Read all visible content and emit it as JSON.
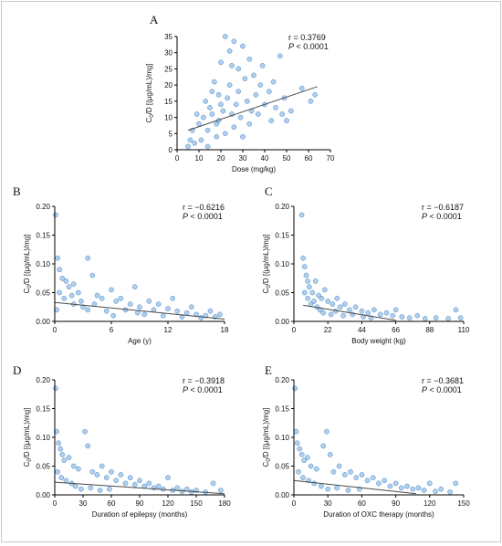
{
  "chart_data": [
    {
      "panel": "A",
      "type": "scatter",
      "xlabel": "Dose (mg/kg)",
      "ylabel": "C0/D [(μg/mL)/mg]",
      "xticks": [
        0,
        10,
        20,
        30,
        40,
        50,
        60,
        70
      ],
      "xlim": [
        0,
        70
      ],
      "yticks": [
        0,
        5,
        10,
        15,
        20,
        25,
        30,
        35
      ],
      "ylim": [
        0,
        35
      ],
      "stats": {
        "r": "r =  0.3769",
        "p": "P < 0.0001"
      },
      "trend": {
        "x": [
          5,
          64
        ],
        "y": [
          6.0,
          19.5
        ]
      },
      "points": [
        [
          22,
          35
        ],
        [
          26,
          33.5
        ],
        [
          30,
          32
        ],
        [
          47,
          29
        ],
        [
          24,
          30.5
        ],
        [
          33,
          28
        ],
        [
          39,
          26
        ],
        [
          63,
          17
        ],
        [
          57,
          19
        ],
        [
          61,
          15
        ],
        [
          28,
          25
        ],
        [
          44,
          21
        ],
        [
          17,
          21
        ],
        [
          20,
          27
        ],
        [
          25,
          26
        ],
        [
          35,
          23
        ],
        [
          42,
          18
        ],
        [
          49,
          16
        ],
        [
          52,
          12
        ],
        [
          38,
          20
        ],
        [
          31,
          22
        ],
        [
          19,
          17
        ],
        [
          15,
          13
        ],
        [
          12,
          10
        ],
        [
          10,
          8
        ],
        [
          9,
          11
        ],
        [
          7,
          6
        ],
        [
          6,
          3
        ],
        [
          5,
          1
        ],
        [
          8,
          2
        ],
        [
          11,
          3
        ],
        [
          14,
          1
        ],
        [
          13,
          15
        ],
        [
          16,
          18
        ],
        [
          18,
          8
        ],
        [
          21,
          12
        ],
        [
          23,
          16
        ],
        [
          27,
          14
        ],
        [
          29,
          10
        ],
        [
          32,
          15
        ],
        [
          34,
          12
        ],
        [
          36,
          17
        ],
        [
          40,
          14
        ],
        [
          45,
          13
        ],
        [
          48,
          11
        ],
        [
          50,
          9
        ],
        [
          22,
          5
        ],
        [
          26,
          7
        ],
        [
          30,
          4
        ],
        [
          18,
          4
        ],
        [
          14,
          6
        ],
        [
          24,
          20
        ],
        [
          20,
          14
        ],
        [
          28,
          18
        ],
        [
          33,
          8
        ],
        [
          37,
          11
        ],
        [
          43,
          9
        ],
        [
          25,
          11
        ],
        [
          19,
          9
        ],
        [
          16,
          11
        ]
      ]
    },
    {
      "panel": "B",
      "type": "scatter",
      "xlabel": "Age (y)",
      "ylabel": "C0/D [(μg/mL)/mg]",
      "xticks": [
        0,
        6,
        12,
        18
      ],
      "xlim": [
        0,
        18
      ],
      "yticks": [
        0.0,
        0.05,
        0.1,
        0.15,
        0.2
      ],
      "ylim": [
        0,
        0.2
      ],
      "stats": {
        "r": "r = −0.6216",
        "p": "P < 0.0001"
      },
      "trend": {
        "x": [
          0,
          18
        ],
        "y": [
          0.033,
          0.004
        ]
      },
      "points": [
        [
          0.1,
          0.185
        ],
        [
          0.3,
          0.11
        ],
        [
          0.5,
          0.09
        ],
        [
          0.8,
          0.075
        ],
        [
          1.2,
          0.07
        ],
        [
          1.5,
          0.06
        ],
        [
          2,
          0.065
        ],
        [
          3.5,
          0.11
        ],
        [
          2.5,
          0.05
        ],
        [
          4,
          0.08
        ],
        [
          4.5,
          0.045
        ],
        [
          5,
          0.04
        ],
        [
          6,
          0.055
        ],
        [
          6.5,
          0.035
        ],
        [
          7,
          0.04
        ],
        [
          8,
          0.03
        ],
        [
          8.5,
          0.06
        ],
        [
          9,
          0.025
        ],
        [
          10,
          0.035
        ],
        [
          10.5,
          0.02
        ],
        [
          11,
          0.03
        ],
        [
          12,
          0.022
        ],
        [
          12.5,
          0.04
        ],
        [
          13,
          0.018
        ],
        [
          14,
          0.015
        ],
        [
          14.5,
          0.025
        ],
        [
          15,
          0.012
        ],
        [
          16,
          0.01
        ],
        [
          16.5,
          0.018
        ],
        [
          17,
          0.008
        ],
        [
          17.5,
          0.012
        ],
        [
          1,
          0.04
        ],
        [
          2,
          0.03
        ],
        [
          3,
          0.025
        ],
        [
          3.5,
          0.02
        ],
        [
          5.5,
          0.018
        ],
        [
          7.5,
          0.02
        ],
        [
          9.5,
          0.012
        ],
        [
          11.5,
          0.01
        ],
        [
          13.5,
          0.008
        ],
        [
          15.5,
          0.006
        ],
        [
          0.5,
          0.05
        ],
        [
          1.8,
          0.045
        ],
        [
          2.8,
          0.035
        ],
        [
          4.2,
          0.03
        ],
        [
          0.2,
          0.02
        ],
        [
          6.2,
          0.01
        ],
        [
          8.8,
          0.015
        ]
      ]
    },
    {
      "panel": "C",
      "type": "scatter",
      "xlabel": "Body weight (kg)",
      "ylabel": "C0/D [(μg/mL)/mg]",
      "xticks": [
        0,
        22,
        44,
        66,
        88,
        110
      ],
      "xlim": [
        0,
        110
      ],
      "yticks": [
        0.0,
        0.05,
        0.1,
        0.15,
        0.2
      ],
      "ylim": [
        0,
        0.2
      ],
      "stats": {
        "r": "r = −0.6187",
        "p": "P < 0.0001"
      },
      "trend": {
        "x": [
          6,
          66
        ],
        "y": [
          0.028,
          0.002
        ]
      },
      "points": [
        [
          5,
          0.185
        ],
        [
          6,
          0.11
        ],
        [
          7,
          0.095
        ],
        [
          8,
          0.08
        ],
        [
          9,
          0.07
        ],
        [
          10,
          0.06
        ],
        [
          12,
          0.05
        ],
        [
          14,
          0.07
        ],
        [
          16,
          0.045
        ],
        [
          18,
          0.04
        ],
        [
          20,
          0.055
        ],
        [
          22,
          0.035
        ],
        [
          25,
          0.03
        ],
        [
          28,
          0.04
        ],
        [
          30,
          0.025
        ],
        [
          33,
          0.03
        ],
        [
          36,
          0.02
        ],
        [
          40,
          0.025
        ],
        [
          44,
          0.018
        ],
        [
          48,
          0.015
        ],
        [
          52,
          0.02
        ],
        [
          56,
          0.012
        ],
        [
          60,
          0.015
        ],
        [
          64,
          0.01
        ],
        [
          66,
          0.02
        ],
        [
          70,
          0.008
        ],
        [
          75,
          0.006
        ],
        [
          80,
          0.01
        ],
        [
          85,
          0.005
        ],
        [
          92,
          0.006
        ],
        [
          100,
          0.005
        ],
        [
          105,
          0.02
        ],
        [
          108,
          0.006
        ],
        [
          11,
          0.03
        ],
        [
          13,
          0.035
        ],
        [
          15,
          0.025
        ],
        [
          17,
          0.02
        ],
        [
          19,
          0.015
        ],
        [
          24,
          0.012
        ],
        [
          27,
          0.018
        ],
        [
          32,
          0.01
        ],
        [
          38,
          0.012
        ],
        [
          45,
          0.008
        ],
        [
          50,
          0.006
        ],
        [
          9,
          0.04
        ],
        [
          7,
          0.05
        ]
      ]
    },
    {
      "panel": "D",
      "type": "scatter",
      "xlabel": "Duration of epilepsy (months)",
      "ylabel": "C0/D [(μg/mL)/mg]",
      "xticks": [
        0,
        30,
        60,
        90,
        120,
        150,
        180
      ],
      "xlim": [
        0,
        180
      ],
      "yticks": [
        0.0,
        0.05,
        0.1,
        0.15,
        0.2
      ],
      "ylim": [
        0,
        0.2
      ],
      "stats": {
        "r": "r = −0.3918",
        "p": "P < 0.0001"
      },
      "trend": {
        "x": [
          0,
          180
        ],
        "y": [
          0.022,
          0.002
        ]
      },
      "points": [
        [
          1,
          0.185
        ],
        [
          2,
          0.11
        ],
        [
          4,
          0.09
        ],
        [
          6,
          0.08
        ],
        [
          8,
          0.07
        ],
        [
          10,
          0.06
        ],
        [
          15,
          0.065
        ],
        [
          20,
          0.05
        ],
        [
          25,
          0.045
        ],
        [
          32,
          0.11
        ],
        [
          35,
          0.085
        ],
        [
          40,
          0.04
        ],
        [
          45,
          0.035
        ],
        [
          50,
          0.05
        ],
        [
          55,
          0.03
        ],
        [
          60,
          0.04
        ],
        [
          65,
          0.025
        ],
        [
          70,
          0.035
        ],
        [
          75,
          0.02
        ],
        [
          80,
          0.03
        ],
        [
          85,
          0.018
        ],
        [
          90,
          0.025
        ],
        [
          95,
          0.015
        ],
        [
          100,
          0.02
        ],
        [
          105,
          0.012
        ],
        [
          110,
          0.015
        ],
        [
          115,
          0.01
        ],
        [
          120,
          0.03
        ],
        [
          125,
          0.008
        ],
        [
          130,
          0.012
        ],
        [
          135,
          0.006
        ],
        [
          140,
          0.01
        ],
        [
          145,
          0.005
        ],
        [
          150,
          0.008
        ],
        [
          160,
          0.005
        ],
        [
          168,
          0.02
        ],
        [
          176,
          0.008
        ],
        [
          3,
          0.04
        ],
        [
          7,
          0.03
        ],
        [
          12,
          0.025
        ],
        [
          18,
          0.02
        ],
        [
          22,
          0.015
        ],
        [
          28,
          0.01
        ],
        [
          38,
          0.012
        ],
        [
          48,
          0.008
        ],
        [
          58,
          0.01
        ]
      ]
    },
    {
      "panel": "E",
      "type": "scatter",
      "xlabel": "Duration of OXC therapy (months)",
      "ylabel": "C0/D [(μg/mL)/mg]",
      "xticks": [
        0,
        30,
        60,
        90,
        120,
        150
      ],
      "xlim": [
        0,
        150
      ],
      "yticks": [
        0.0,
        0.05,
        0.1,
        0.15,
        0.2
      ],
      "ylim": [
        0,
        0.2
      ],
      "stats": {
        "r": "r = −0.3681",
        "p": "P < 0.0001"
      },
      "trend": {
        "x": [
          0,
          108
        ],
        "y": [
          0.025,
          0.002
        ]
      },
      "points": [
        [
          1,
          0.185
        ],
        [
          2,
          0.11
        ],
        [
          3,
          0.09
        ],
        [
          5,
          0.08
        ],
        [
          7,
          0.07
        ],
        [
          9,
          0.06
        ],
        [
          12,
          0.065
        ],
        [
          15,
          0.05
        ],
        [
          20,
          0.045
        ],
        [
          26,
          0.085
        ],
        [
          29,
          0.11
        ],
        [
          32,
          0.07
        ],
        [
          35,
          0.04
        ],
        [
          40,
          0.05
        ],
        [
          45,
          0.035
        ],
        [
          50,
          0.04
        ],
        [
          55,
          0.03
        ],
        [
          60,
          0.035
        ],
        [
          65,
          0.025
        ],
        [
          70,
          0.03
        ],
        [
          75,
          0.02
        ],
        [
          80,
          0.025
        ],
        [
          85,
          0.015
        ],
        [
          90,
          0.02
        ],
        [
          95,
          0.012
        ],
        [
          100,
          0.015
        ],
        [
          105,
          0.01
        ],
        [
          110,
          0.012
        ],
        [
          115,
          0.008
        ],
        [
          120,
          0.02
        ],
        [
          125,
          0.006
        ],
        [
          130,
          0.01
        ],
        [
          138,
          0.005
        ],
        [
          143,
          0.02
        ],
        [
          4,
          0.04
        ],
        [
          8,
          0.03
        ],
        [
          13,
          0.025
        ],
        [
          18,
          0.02
        ],
        [
          24,
          0.015
        ],
        [
          30,
          0.01
        ],
        [
          38,
          0.012
        ],
        [
          48,
          0.008
        ],
        [
          58,
          0.01
        ]
      ]
    }
  ]
}
